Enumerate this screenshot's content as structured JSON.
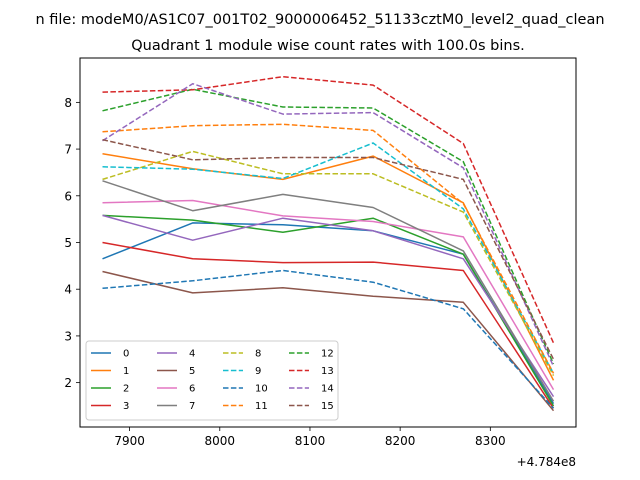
{
  "chart_data": {
    "type": "line",
    "suptitle": "n file: modeM0/AS1C07_001T02_9000006452_51133cztM0_level2_quad_clean",
    "title": "Quadrant 1 module wise count rates with 100.0s bins.",
    "xlabel": "",
    "ylabel": "",
    "offset_label": "+4.784e8",
    "x": [
      7870,
      7970,
      8070,
      8170,
      8270,
      8370
    ],
    "xlim": [
      7845,
      8395
    ],
    "ylim": [
      1.05,
      8.95
    ],
    "xticks": [
      7900,
      8000,
      8100,
      8200,
      8300
    ],
    "yticks": [
      2,
      3,
      4,
      5,
      6,
      7,
      8
    ],
    "grid": false,
    "legend": {
      "placement": "lower-left",
      "columns": 4
    },
    "series": [
      {
        "name": "0",
        "color": "#1f77b4",
        "dash": "solid",
        "values": [
          4.65,
          5.42,
          5.38,
          5.25,
          4.75,
          1.55
        ]
      },
      {
        "name": "1",
        "color": "#ff7f0e",
        "dash": "solid",
        "values": [
          6.9,
          6.58,
          6.35,
          6.85,
          5.85,
          2.05
        ]
      },
      {
        "name": "2",
        "color": "#2ca02c",
        "dash": "solid",
        "values": [
          5.58,
          5.48,
          5.22,
          5.52,
          4.75,
          1.5
        ]
      },
      {
        "name": "3",
        "color": "#d62728",
        "dash": "solid",
        "values": [
          5.0,
          4.65,
          4.57,
          4.58,
          4.4,
          1.45
        ]
      },
      {
        "name": "4",
        "color": "#9467bd",
        "dash": "solid",
        "values": [
          5.58,
          5.05,
          5.52,
          5.25,
          4.65,
          1.7
        ]
      },
      {
        "name": "5",
        "color": "#8c564b",
        "dash": "solid",
        "values": [
          4.38,
          3.92,
          4.03,
          3.85,
          3.72,
          1.4
        ]
      },
      {
        "name": "6",
        "color": "#e377c2",
        "dash": "solid",
        "values": [
          5.85,
          5.9,
          5.57,
          5.45,
          5.12,
          1.85
        ]
      },
      {
        "name": "7",
        "color": "#7f7f7f",
        "dash": "solid",
        "values": [
          6.32,
          5.68,
          6.03,
          5.75,
          4.82,
          1.6
        ]
      },
      {
        "name": "8",
        "color": "#bcbd22",
        "dash": "dashed",
        "values": [
          6.35,
          6.95,
          6.47,
          6.47,
          5.65,
          2.15
        ]
      },
      {
        "name": "9",
        "color": "#17becf",
        "dash": "dashed",
        "values": [
          6.62,
          6.57,
          6.37,
          7.13,
          5.72,
          2.2
        ]
      },
      {
        "name": "10",
        "color": "#1f77b4",
        "dash": "dashed",
        "values": [
          4.02,
          4.18,
          4.4,
          4.15,
          3.58,
          1.45
        ]
      },
      {
        "name": "11",
        "color": "#ff7f0e",
        "dash": "dashed",
        "values": [
          7.37,
          7.5,
          7.53,
          7.4,
          5.83,
          2.2
        ]
      },
      {
        "name": "12",
        "color": "#2ca02c",
        "dash": "dashed",
        "values": [
          7.82,
          8.28,
          7.9,
          7.88,
          6.73,
          2.4
        ]
      },
      {
        "name": "13",
        "color": "#d62728",
        "dash": "dashed",
        "values": [
          8.22,
          8.27,
          8.55,
          8.37,
          7.12,
          2.85
        ]
      },
      {
        "name": "14",
        "color": "#9467bd",
        "dash": "dashed",
        "values": [
          7.18,
          8.4,
          7.75,
          7.78,
          6.6,
          2.35
        ]
      },
      {
        "name": "15",
        "color": "#8c564b",
        "dash": "dashed",
        "values": [
          7.2,
          6.77,
          6.82,
          6.82,
          6.35,
          2.5
        ]
      }
    ]
  }
}
